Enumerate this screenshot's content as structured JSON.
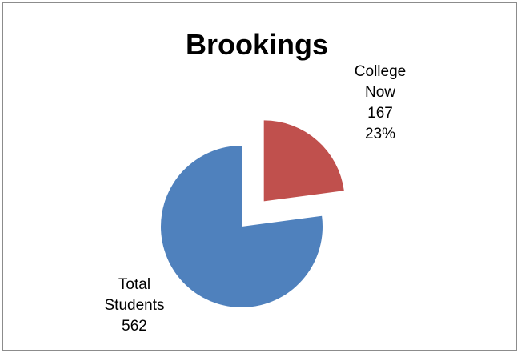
{
  "chart_data": {
    "type": "pie",
    "title": "Brookings",
    "slices": [
      {
        "label_lines": [
          "College",
          "Now"
        ],
        "value": 167,
        "value_text": "167",
        "percent_text": "23%",
        "color": "#C0504D",
        "exploded": true
      },
      {
        "label_lines": [
          "Total",
          "Students"
        ],
        "value": 562,
        "value_text": "562",
        "percent_text": "",
        "color": "#4F81BD",
        "exploded": false
      }
    ],
    "legend": "none"
  }
}
